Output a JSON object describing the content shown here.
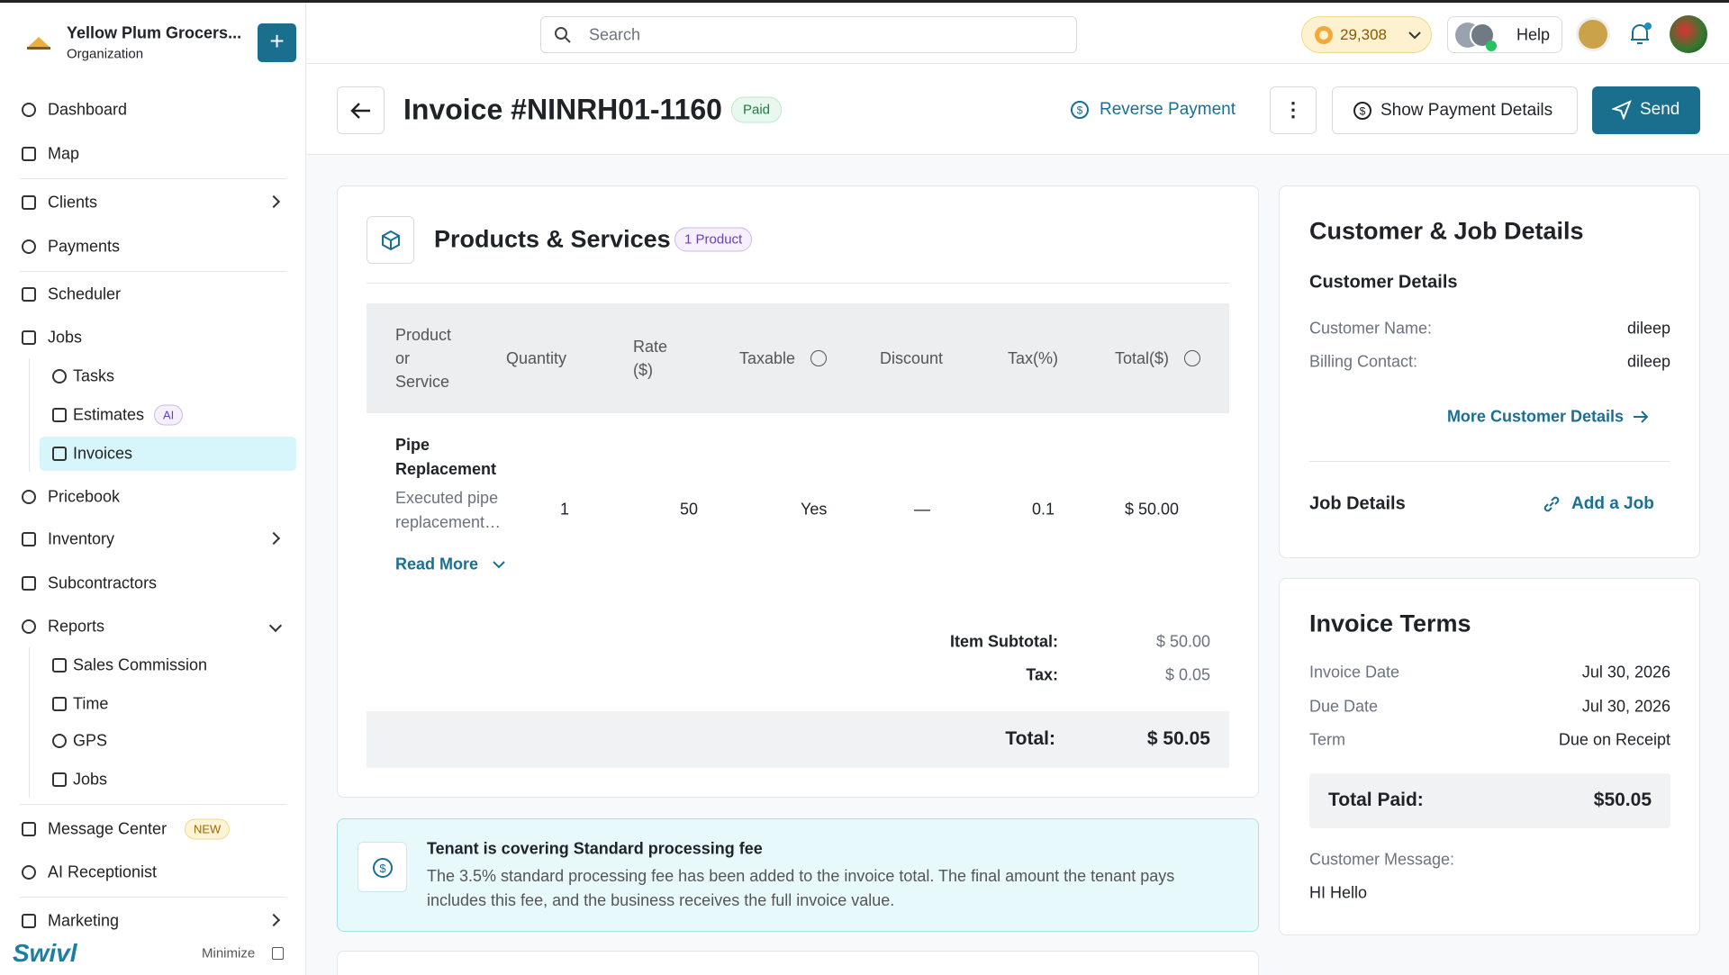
{
  "top_bar": {
    "search_placeholder": "Search",
    "coins": "29,308",
    "help": "Help"
  },
  "sidebar": {
    "org_name": "Yellow Plum Grocers...",
    "org_type": "Organization",
    "nav": [
      "Dashboard",
      "Map",
      "Clients",
      "Payments",
      "Scheduler",
      "Jobs",
      "Tasks",
      "Estimates",
      "Invoices",
      "Pricebook",
      "Inventory",
      "Subcontractors",
      "Reports",
      "Sales Commission",
      "Time",
      "GPS",
      "Jobs",
      "Message Center",
      "AI Receptionist",
      "Marketing"
    ],
    "badges": {
      "estimates": "AI",
      "message_center": "NEW"
    },
    "brand": "Swivl",
    "minimize": "Minimize"
  },
  "header": {
    "title": "Invoice #NINRH01-1160",
    "status": "Paid",
    "reverse_payment": "Reverse Payment",
    "show_payment_details": "Show Payment Details",
    "send": "Send"
  },
  "products": {
    "title": "Products & Services",
    "count_badge": "1 Product",
    "columns": [
      "Product or Service",
      "Quantity",
      "Rate ($)",
      "Taxable",
      "Discount",
      "Tax(%)",
      "Total($)"
    ],
    "rows": [
      {
        "name": "Pipe Replacement",
        "description": "Executed pipe replacement…",
        "quantity": "1",
        "rate": "50",
        "taxable": "Yes",
        "discount": "—",
        "tax": "0.1",
        "total": "$ 50.00"
      }
    ],
    "read_more": "Read More",
    "summary": {
      "subtotal_label": "Item Subtotal:",
      "subtotal": "$ 50.00",
      "tax_label": "Tax:",
      "tax": "$ 0.05",
      "total_label": "Total:",
      "total": "$ 50.05"
    }
  },
  "fee_notice": {
    "title": "Tenant is covering Standard processing fee",
    "body": "The 3.5% standard processing fee has been added to the invoice total. The final amount the tenant pays includes this fee, and the business receives the full invoice value."
  },
  "customer_job": {
    "title": "Customer & Job Details",
    "customer_heading": "Customer Details",
    "fields": [
      {
        "label": "Customer Name:",
        "value": "dileep"
      },
      {
        "label": "Billing Contact:",
        "value": "dileep"
      }
    ],
    "more_link": "More Customer Details",
    "job_heading": "Job Details",
    "add_job": "Add a Job"
  },
  "invoice_terms": {
    "title": "Invoice Terms",
    "fields": [
      {
        "label": "Invoice Date",
        "value": "Jul 30, 2026"
      },
      {
        "label": "Due Date",
        "value": "Jul 30, 2026"
      },
      {
        "label": "Term",
        "value": "Due on Receipt"
      }
    ],
    "total_paid_label": "Total Paid:",
    "total_paid": "$50.05",
    "message_label": "Customer Message:",
    "message": "HI Hello"
  }
}
